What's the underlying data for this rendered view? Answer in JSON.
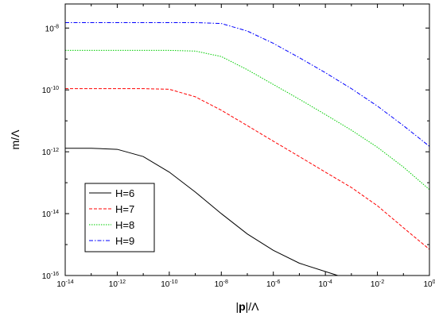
{
  "chart_data": {
    "type": "line",
    "xscale": "log",
    "yscale": "log",
    "xlim": [
      1e-14,
      1
    ],
    "ylim": [
      1e-16,
      6e-08
    ],
    "xlabel_pre": "|",
    "xlabel_bold": "p",
    "xlabel_post": "|/Λ",
    "ylabel": "m/Λ",
    "x_ticks": [
      {
        "value": 1e-14,
        "base": "10",
        "exp": "-14"
      },
      {
        "value": 1e-12,
        "base": "10",
        "exp": "-12"
      },
      {
        "value": 1e-10,
        "base": "10",
        "exp": "-10"
      },
      {
        "value": 1e-08,
        "base": "10",
        "exp": "-8"
      },
      {
        "value": 1e-06,
        "base": "10",
        "exp": "-6"
      },
      {
        "value": 0.0001,
        "base": "10",
        "exp": "-4"
      },
      {
        "value": 0.01,
        "base": "10",
        "exp": "-2"
      },
      {
        "value": 1,
        "base": "10",
        "exp": "0"
      }
    ],
    "y_ticks": [
      {
        "value": 1e-16,
        "base": "10",
        "exp": "-16"
      },
      {
        "value": 1e-14,
        "base": "10",
        "exp": "-14"
      },
      {
        "value": 1e-12,
        "base": "10",
        "exp": "-12"
      },
      {
        "value": 1e-10,
        "base": "10",
        "exp": "-10"
      },
      {
        "value": 1e-08,
        "base": "10",
        "exp": "-8"
      }
    ],
    "legend_position": "bottom-left",
    "series": [
      {
        "name": "H=6",
        "color": "#000000",
        "dash": "solid",
        "points": [
          [
            1e-14,
            1.3e-12
          ],
          [
            1e-13,
            1.3e-12
          ],
          [
            1e-12,
            1.2e-12
          ],
          [
            1e-11,
            7e-13
          ],
          [
            1e-10,
            2.2e-13
          ],
          [
            1e-09,
            5e-14
          ],
          [
            1e-08,
            1e-14
          ],
          [
            1e-07,
            2.2e-15
          ],
          [
            1e-06,
            6.5e-16
          ],
          [
            1e-05,
            2.5e-16
          ],
          [
            0.0003,
            1e-16
          ]
        ]
      },
      {
        "name": "H=7",
        "color": "#ff0000",
        "dash": "dashed",
        "points": [
          [
            1e-14,
            1.1e-10
          ],
          [
            1e-11,
            1.1e-10
          ],
          [
            1e-10,
            1.05e-10
          ],
          [
            1e-09,
            6e-11
          ],
          [
            1e-08,
            2.2e-11
          ],
          [
            1e-07,
            7e-12
          ],
          [
            1e-06,
            2.2e-12
          ],
          [
            1e-05,
            7e-13
          ],
          [
            0.0001,
            2.2e-13
          ],
          [
            0.001,
            7e-14
          ],
          [
            0.01,
            1.8e-14
          ],
          [
            0.1,
            3.5e-15
          ],
          [
            1,
            7e-16
          ]
        ]
      },
      {
        "name": "H=8",
        "color": "#00cc00",
        "dash": "dotted",
        "points": [
          [
            1e-14,
            1.9e-09
          ],
          [
            1e-10,
            1.9e-09
          ],
          [
            1e-09,
            1.8e-09
          ],
          [
            1e-08,
            1.2e-09
          ],
          [
            1e-07,
            4.5e-10
          ],
          [
            1e-06,
            1.5e-10
          ],
          [
            1e-05,
            5e-11
          ],
          [
            0.0001,
            1.6e-11
          ],
          [
            0.001,
            5e-12
          ],
          [
            0.01,
            1.4e-12
          ],
          [
            0.1,
            3.2e-13
          ],
          [
            1,
            6e-14
          ]
        ]
      },
      {
        "name": "H=9",
        "color": "#0000ff",
        "dash": "dashdot",
        "points": [
          [
            1e-14,
            1.5e-08
          ],
          [
            1e-09,
            1.5e-08
          ],
          [
            1e-08,
            1.4e-08
          ],
          [
            1e-07,
            8e-09
          ],
          [
            1e-06,
            3.2e-09
          ],
          [
            1e-05,
            1.1e-09
          ],
          [
            0.0001,
            3.6e-10
          ],
          [
            0.001,
            1.1e-10
          ],
          [
            0.01,
            3e-11
          ],
          [
            0.1,
            7e-12
          ],
          [
            1,
            1.5e-12
          ]
        ]
      }
    ]
  }
}
